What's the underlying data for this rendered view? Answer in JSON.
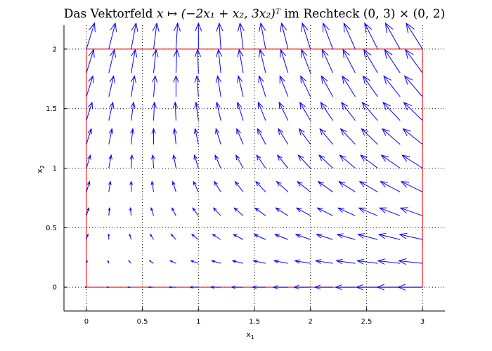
{
  "title": {
    "prefix": "Das Vektorfeld ",
    "formula": "x ↦ (−2x₁ + x₂, 3x₂)ᵀ",
    "middle": " im Rechteck ",
    "domain": "(0, 3) × (0, 2)"
  },
  "colors": {
    "arrows": "#0000ff",
    "rectangle": "#ff0000",
    "axes": "#000000"
  },
  "chart_data": {
    "type": "quiver",
    "title": "Das Vektorfeld x ↦ (−2x₁ + x₂, 3x₂)ᵀ im Rechteck (0, 3) × (0, 2)",
    "field": {
      "u": "-2*x1 + x2",
      "v": "3*x2"
    },
    "xlabel": {
      "base": "x",
      "sub": "1"
    },
    "ylabel": {
      "base": "x",
      "sub": "2"
    },
    "xlim": [
      -0.2,
      3.2
    ],
    "ylim": [
      -0.2,
      2.2
    ],
    "xticks": [
      0,
      0.5,
      1,
      1.5,
      2,
      2.5,
      3
    ],
    "yticks": [
      0,
      0.5,
      1,
      1.5,
      2
    ],
    "xtick_labels": [
      "0",
      "0.5",
      "1",
      "1.5",
      "2",
      "2.5",
      "3"
    ],
    "ytick_labels": [
      "0",
      "0.5",
      "1",
      "1.5",
      "2"
    ],
    "grid": true,
    "grid_x1": [
      0,
      0.2,
      0.4,
      0.6,
      0.8,
      1.0,
      1.2,
      1.4,
      1.6,
      1.8,
      2.0,
      2.2,
      2.4,
      2.6,
      2.8,
      3.0
    ],
    "grid_x2": [
      0,
      0.2,
      0.4,
      0.6,
      0.8,
      1.0,
      1.2,
      1.4,
      1.6,
      1.8,
      2.0
    ],
    "rectangle": {
      "x1": [
        0,
        3
      ],
      "x2": [
        0,
        2
      ]
    }
  }
}
